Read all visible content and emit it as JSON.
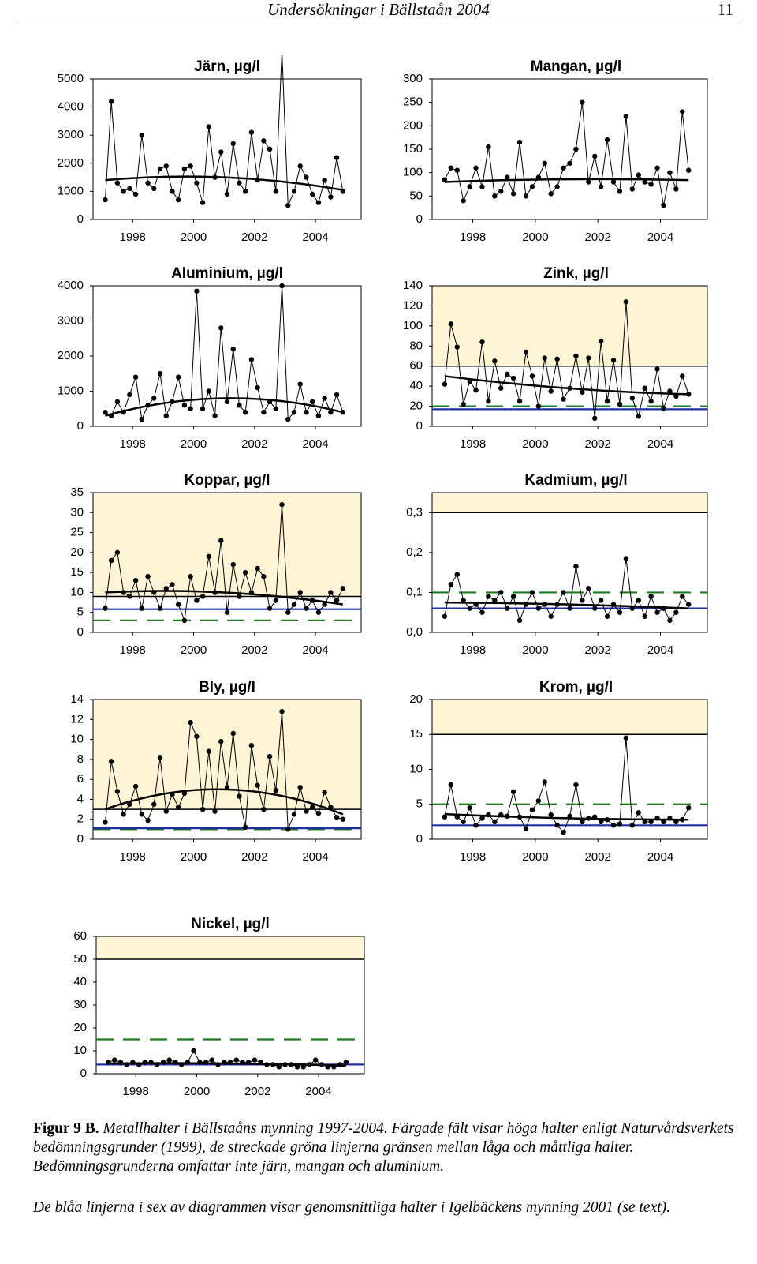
{
  "header": {
    "title": "Undersökningar i Bällstaån 2004",
    "page": "11"
  },
  "chart_data": [
    {
      "type": "line",
      "title": "Järn, µg/l",
      "x": [
        1997.1,
        1997.3,
        1997.5,
        1997.7,
        1997.9,
        1998.1,
        1998.3,
        1998.5,
        1998.7,
        1998.9,
        1999.1,
        1999.3,
        1999.5,
        1999.7,
        1999.9,
        2000.1,
        2000.3,
        2000.5,
        2000.7,
        2000.9,
        2001.1,
        2001.3,
        2001.5,
        2001.7,
        2001.9,
        2002.1,
        2002.3,
        2002.5,
        2002.7,
        2002.9,
        2003.1,
        2003.3,
        2003.5,
        2003.7,
        2003.9,
        2004.1,
        2004.3,
        2004.5,
        2004.7,
        2004.9
      ],
      "values": [
        700,
        4200,
        1300,
        1000,
        1100,
        900,
        3000,
        1300,
        1100,
        1800,
        1900,
        1000,
        700,
        1800,
        1900,
        1300,
        600,
        3300,
        1500,
        2400,
        900,
        2700,
        1300,
        1000,
        3100,
        1400,
        2800,
        2500,
        1000,
        6000,
        500,
        1000,
        1900,
        1500,
        900,
        600,
        1400,
        800,
        2200,
        1000
      ],
      "color": "#000000",
      "xlim": [
        1996.7,
        2005.5
      ],
      "xticks": [
        1998,
        2000,
        2002,
        2004
      ],
      "ylim": [
        0,
        5000
      ],
      "yticks": [
        0,
        1000,
        2000,
        3000,
        4000,
        5000
      ],
      "trend": {
        "x": [
          1997.1,
          2001,
          2004.9
        ],
        "values": [
          1400,
          1500,
          1050
        ]
      },
      "lines": []
    },
    {
      "type": "line",
      "title": "Mangan, µg/l",
      "x": [
        1997.1,
        1997.3,
        1997.5,
        1997.7,
        1997.9,
        1998.1,
        1998.3,
        1998.5,
        1998.7,
        1998.9,
        1999.1,
        1999.3,
        1999.5,
        1999.7,
        1999.9,
        2000.1,
        2000.3,
        2000.5,
        2000.7,
        2000.9,
        2001.1,
        2001.3,
        2001.5,
        2001.7,
        2001.9,
        2002.1,
        2002.3,
        2002.5,
        2002.7,
        2002.9,
        2003.1,
        2003.3,
        2003.5,
        2003.7,
        2003.9,
        2004.1,
        2004.3,
        2004.5,
        2004.7,
        2004.9
      ],
      "values": [
        85,
        110,
        105,
        40,
        70,
        110,
        70,
        155,
        50,
        60,
        90,
        55,
        165,
        50,
        70,
        90,
        120,
        55,
        70,
        110,
        120,
        150,
        250,
        80,
        135,
        70,
        170,
        80,
        60,
        220,
        65,
        95,
        80,
        75,
        110,
        30,
        100,
        65,
        230,
        105
      ],
      "color": "#000000",
      "xlim": [
        1996.7,
        2005.5
      ],
      "xticks": [
        1998,
        2000,
        2002,
        2004
      ],
      "ylim": [
        0,
        300
      ],
      "yticks": [
        0,
        50,
        100,
        150,
        200,
        250,
        300
      ],
      "trend": {
        "x": [
          1997.1,
          2001,
          2004.9
        ],
        "values": [
          80,
          86,
          84
        ]
      },
      "lines": []
    },
    {
      "type": "line",
      "title": "Aluminium, µg/l",
      "x": [
        1997.1,
        1997.3,
        1997.5,
        1997.7,
        1997.9,
        1998.1,
        1998.3,
        1998.5,
        1998.7,
        1998.9,
        1999.1,
        1999.3,
        1999.5,
        1999.7,
        1999.9,
        2000.1,
        2000.3,
        2000.5,
        2000.7,
        2000.9,
        2001.1,
        2001.3,
        2001.5,
        2001.7,
        2001.9,
        2002.1,
        2002.3,
        2002.5,
        2002.7,
        2002.9,
        2003.1,
        2003.3,
        2003.5,
        2003.7,
        2003.9,
        2004.1,
        2004.3,
        2004.5,
        2004.7,
        2004.9
      ],
      "values": [
        400,
        300,
        700,
        400,
        900,
        1400,
        200,
        600,
        800,
        1500,
        300,
        700,
        1400,
        600,
        500,
        3850,
        500,
        1000,
        300,
        2800,
        700,
        2200,
        600,
        400,
        1900,
        1100,
        400,
        700,
        500,
        4000,
        200,
        400,
        1200,
        400,
        700,
        300,
        800,
        400,
        900,
        400
      ],
      "color": "#000000",
      "xlim": [
        1996.7,
        2005.5
      ],
      "xticks": [
        1998,
        2000,
        2002,
        2004
      ],
      "ylim": [
        0,
        4000
      ],
      "yticks": [
        0,
        1000,
        2000,
        3000,
        4000
      ],
      "trend": {
        "x": [
          1997.1,
          2001,
          2004.9
        ],
        "values": [
          300,
          800,
          400
        ]
      },
      "lines": []
    },
    {
      "type": "line",
      "title": "Zink, µg/l",
      "x": [
        1997.1,
        1997.3,
        1997.5,
        1997.7,
        1997.9,
        1998.1,
        1998.3,
        1998.5,
        1998.7,
        1998.9,
        1999.1,
        1999.3,
        1999.5,
        1999.7,
        1999.9,
        2000.1,
        2000.3,
        2000.5,
        2000.7,
        2000.9,
        2001.1,
        2001.3,
        2001.5,
        2001.7,
        2001.9,
        2002.1,
        2002.3,
        2002.5,
        2002.7,
        2002.9,
        2003.1,
        2003.3,
        2003.5,
        2003.7,
        2003.9,
        2004.1,
        2004.3,
        2004.5,
        2004.7,
        2004.9
      ],
      "values": [
        42,
        102,
        79,
        22,
        45,
        36,
        84,
        25,
        65,
        38,
        52,
        48,
        25,
        74,
        50,
        20,
        68,
        35,
        67,
        27,
        38,
        70,
        34,
        68,
        8,
        85,
        25,
        66,
        22,
        124,
        28,
        10,
        38,
        25,
        57,
        18,
        35,
        30,
        50,
        32
      ],
      "color": "#000000",
      "xlim": [
        1996.7,
        2005.5
      ],
      "xticks": [
        1998,
        2000,
        2002,
        2004
      ],
      "ylim": [
        0,
        140
      ],
      "yticks": [
        0,
        20,
        40,
        60,
        80,
        100,
        120,
        140
      ],
      "trend": {
        "x": [
          1997.1,
          2001,
          2004.9
        ],
        "values": [
          50,
          38,
          32
        ]
      },
      "high_from": 60,
      "high_color": "#fdf5d6",
      "lines": [
        {
          "value": 20,
          "color": "#1e7b1e",
          "dashed": true
        },
        {
          "value": 17,
          "color": "#1f2fa0",
          "dashed": false
        }
      ]
    },
    {
      "type": "line",
      "title": "Koppar, µg/l",
      "x": [
        1997.1,
        1997.3,
        1997.5,
        1997.7,
        1997.9,
        1998.1,
        1998.3,
        1998.5,
        1998.7,
        1998.9,
        1999.1,
        1999.3,
        1999.5,
        1999.7,
        1999.9,
        2000.1,
        2000.3,
        2000.5,
        2000.7,
        2000.9,
        2001.1,
        2001.3,
        2001.5,
        2001.7,
        2001.9,
        2002.1,
        2002.3,
        2002.5,
        2002.7,
        2002.9,
        2003.1,
        2003.3,
        2003.5,
        2003.7,
        2003.9,
        2004.1,
        2004.3,
        2004.5,
        2004.7,
        2004.9
      ],
      "values": [
        6,
        18,
        20,
        10,
        9,
        13,
        6,
        14,
        10,
        6,
        11,
        12,
        7,
        3,
        14,
        8,
        9,
        19,
        10,
        23,
        5,
        17,
        9,
        15,
        10,
        16,
        14,
        6,
        8,
        32,
        5,
        7,
        10,
        6,
        8,
        5,
        7,
        10,
        8,
        11
      ],
      "color": "#000000",
      "xlim": [
        1996.7,
        2005.5
      ],
      "xticks": [
        1998,
        2000,
        2002,
        2004
      ],
      "ylim": [
        0,
        35
      ],
      "yticks": [
        0,
        5,
        10,
        15,
        20,
        25,
        30,
        35
      ],
      "trend": {
        "x": [
          1997.1,
          2001,
          2004.9
        ],
        "values": [
          10,
          10,
          7
        ]
      },
      "high_from": 9,
      "high_color": "#fdf5d6",
      "lines": [
        {
          "value": 3,
          "color": "#1e7b1e",
          "dashed": true
        },
        {
          "value": 5.8,
          "color": "#1f2fa0",
          "dashed": false
        }
      ]
    },
    {
      "type": "line",
      "title": "Kadmium, µg/l",
      "x": [
        1997.1,
        1997.3,
        1997.5,
        1997.7,
        1997.9,
        1998.1,
        1998.3,
        1998.5,
        1998.7,
        1998.9,
        1999.1,
        1999.3,
        1999.5,
        1999.7,
        1999.9,
        2000.1,
        2000.3,
        2000.5,
        2000.7,
        2000.9,
        2001.1,
        2001.3,
        2001.5,
        2001.7,
        2001.9,
        2002.1,
        2002.3,
        2002.5,
        2002.7,
        2002.9,
        2003.1,
        2003.3,
        2003.5,
        2003.7,
        2003.9,
        2004.1,
        2004.3,
        2004.5,
        2004.7,
        2004.9
      ],
      "values": [
        0.04,
        0.12,
        0.145,
        0.08,
        0.06,
        0.07,
        0.05,
        0.09,
        0.08,
        0.1,
        0.06,
        0.09,
        0.03,
        0.07,
        0.1,
        0.06,
        0.07,
        0.04,
        0.07,
        0.1,
        0.06,
        0.165,
        0.08,
        0.11,
        0.06,
        0.08,
        0.04,
        0.07,
        0.05,
        0.185,
        0.06,
        0.08,
        0.04,
        0.09,
        0.05,
        0.06,
        0.03,
        0.05,
        0.09,
        0.07
      ],
      "color": "#000000",
      "xlim": [
        1996.7,
        2005.5
      ],
      "xticks": [
        1998,
        2000,
        2002,
        2004
      ],
      "ylim": [
        0,
        0.35
      ],
      "yticks": [
        {
          "value": 0,
          "label": "0,0"
        },
        {
          "value": 0.1,
          "label": "0,1"
        },
        {
          "value": 0.2,
          "label": "0,2"
        },
        {
          "value": 0.3,
          "label": "0,3"
        }
      ],
      "trend": {
        "x": [
          1997.1,
          2001,
          2004.9
        ],
        "values": [
          0.075,
          0.07,
          0.06
        ]
      },
      "high_from": 0.3,
      "high_color": "#fdf5d6",
      "lines": [
        {
          "value": 0.1,
          "color": "#1e7b1e",
          "dashed": true
        },
        {
          "value": 0.06,
          "color": "#1f2fa0",
          "dashed": false
        }
      ]
    },
    {
      "type": "line",
      "title": "Bly, µg/l",
      "x": [
        1997.1,
        1997.3,
        1997.5,
        1997.7,
        1997.9,
        1998.1,
        1998.3,
        1998.5,
        1998.7,
        1998.9,
        1999.1,
        1999.3,
        1999.5,
        1999.7,
        1999.9,
        2000.1,
        2000.3,
        2000.5,
        2000.7,
        2000.9,
        2001.1,
        2001.3,
        2001.5,
        2001.7,
        2001.9,
        2002.1,
        2002.3,
        2002.5,
        2002.7,
        2002.9,
        2003.1,
        2003.3,
        2003.5,
        2003.7,
        2003.9,
        2004.1,
        2004.3,
        2004.5,
        2004.7,
        2004.9
      ],
      "values": [
        1.7,
        7.8,
        4.8,
        2.5,
        3.5,
        5.3,
        2.5,
        1.9,
        3.5,
        8.2,
        2.8,
        4.5,
        3.2,
        4.6,
        11.7,
        10.3,
        3,
        8.8,
        2.8,
        9.8,
        5.2,
        10.6,
        4.3,
        1.2,
        9.4,
        5.4,
        3,
        8.3,
        4.9,
        12.8,
        1,
        2.5,
        5.2,
        2.8,
        3.2,
        2.6,
        4.7,
        3.2,
        2.2,
        2
      ],
      "color": "#000000",
      "xlim": [
        1996.7,
        2005.5
      ],
      "xticks": [
        1998,
        2000,
        2002,
        2004
      ],
      "ylim": [
        0,
        14
      ],
      "yticks": [
        0,
        2,
        4,
        6,
        8,
        10,
        12,
        14
      ],
      "trend": {
        "x": [
          1997.1,
          2001,
          2004.9
        ],
        "values": [
          3,
          5,
          2.5
        ]
      },
      "high_from": 3,
      "high_color": "#fdf5d6",
      "lines": [
        {
          "value": 1,
          "color": "#1e7b1e",
          "dashed": true
        },
        {
          "value": 1.1,
          "color": "#1f2fa0",
          "dashed": false
        }
      ]
    },
    {
      "type": "line",
      "title": "Krom, µg/l",
      "x": [
        1997.1,
        1997.3,
        1997.5,
        1997.7,
        1997.9,
        1998.1,
        1998.3,
        1998.5,
        1998.7,
        1998.9,
        1999.1,
        1999.3,
        1999.5,
        1999.7,
        1999.9,
        2000.1,
        2000.3,
        2000.5,
        2000.7,
        2000.9,
        2001.1,
        2001.3,
        2001.5,
        2001.7,
        2001.9,
        2002.1,
        2002.3,
        2002.5,
        2002.7,
        2002.9,
        2003.1,
        2003.3,
        2003.5,
        2003.7,
        2003.9,
        2004.1,
        2004.3,
        2004.5,
        2004.7,
        2004.9
      ],
      "values": [
        3.2,
        7.8,
        3.2,
        2.5,
        4.5,
        2,
        3,
        3.5,
        2.5,
        3.5,
        3.3,
        6.8,
        3.2,
        1.5,
        4.2,
        5.5,
        8.2,
        3.5,
        2,
        1,
        3.3,
        7.8,
        2.5,
        3,
        3.2,
        2.5,
        2.8,
        2,
        2.2,
        14.5,
        2,
        3.8,
        2.5,
        2.5,
        3,
        2.5,
        3,
        2.5,
        2.8,
        4.5
      ],
      "color": "#000000",
      "xlim": [
        1996.7,
        2005.5
      ],
      "xticks": [
        1998,
        2000,
        2002,
        2004
      ],
      "ylim": [
        0,
        20
      ],
      "yticks": [
        0,
        5,
        10,
        15,
        20
      ],
      "trend": {
        "x": [
          1997.1,
          2001,
          2004.9
        ],
        "values": [
          3.6,
          3,
          2.8
        ]
      },
      "high_from": 15,
      "high_color": "#fdf5d6",
      "lines": [
        {
          "value": 5,
          "color": "#1e7b1e",
          "dashed": true
        },
        {
          "value": 2,
          "color": "#1f2fa0",
          "dashed": false
        }
      ]
    },
    {
      "type": "line",
      "title": "Nickel, µg/l",
      "x": [
        1997.1,
        1997.3,
        1997.5,
        1997.7,
        1997.9,
        1998.1,
        1998.3,
        1998.5,
        1998.7,
        1998.9,
        1999.1,
        1999.3,
        1999.5,
        1999.7,
        1999.9,
        2000.1,
        2000.3,
        2000.5,
        2000.7,
        2000.9,
        2001.1,
        2001.3,
        2001.5,
        2001.7,
        2001.9,
        2002.1,
        2002.3,
        2002.5,
        2002.7,
        2002.9,
        2003.1,
        2003.3,
        2003.5,
        2003.7,
        2003.9,
        2004.1,
        2004.3,
        2004.5,
        2004.7,
        2004.9
      ],
      "values": [
        5,
        6,
        5,
        4,
        5,
        4,
        5,
        5,
        4,
        5,
        6,
        5,
        4,
        5,
        10,
        5,
        5,
        6,
        4,
        5,
        5,
        6,
        5,
        5,
        6,
        5,
        4,
        4,
        3,
        4,
        4,
        3,
        3,
        4,
        6,
        4,
        3,
        3,
        4,
        5
      ],
      "color": "#000000",
      "xlim": [
        1996.7,
        2005.5
      ],
      "xticks": [
        1998,
        2000,
        2002,
        2004
      ],
      "ylim": [
        0,
        60
      ],
      "yticks": [
        0,
        10,
        20,
        30,
        40,
        50,
        60
      ],
      "trend": {
        "x": [
          1997.1,
          2001,
          2004.9
        ],
        "values": [
          4.5,
          4.5,
          3.5
        ]
      },
      "high_from": 50,
      "high_color": "#fdf5d6",
      "lines": [
        {
          "value": 15,
          "color": "#1e7b1e",
          "dashed": true
        },
        {
          "value": 4,
          "color": "#1f2fa0",
          "dashed": false
        }
      ]
    }
  ],
  "caption": {
    "label": "Figur 9 B.",
    "text": "Metallhalter i Bällstaåns mynning 1997-2004. Färgade fält visar höga halter enligt Naturvårdsverkets bedömningsgrunder (1999), de streckade gröna linjerna gränsen mellan låga och måttliga halter. Bedömningsgrunderna omfattar inte järn, mangan och aluminium.",
    "note": "De blåa linjerna i sex av diagrammen visar genomsnittliga halter i Igelbäckens mynning 2001 (se text)."
  }
}
